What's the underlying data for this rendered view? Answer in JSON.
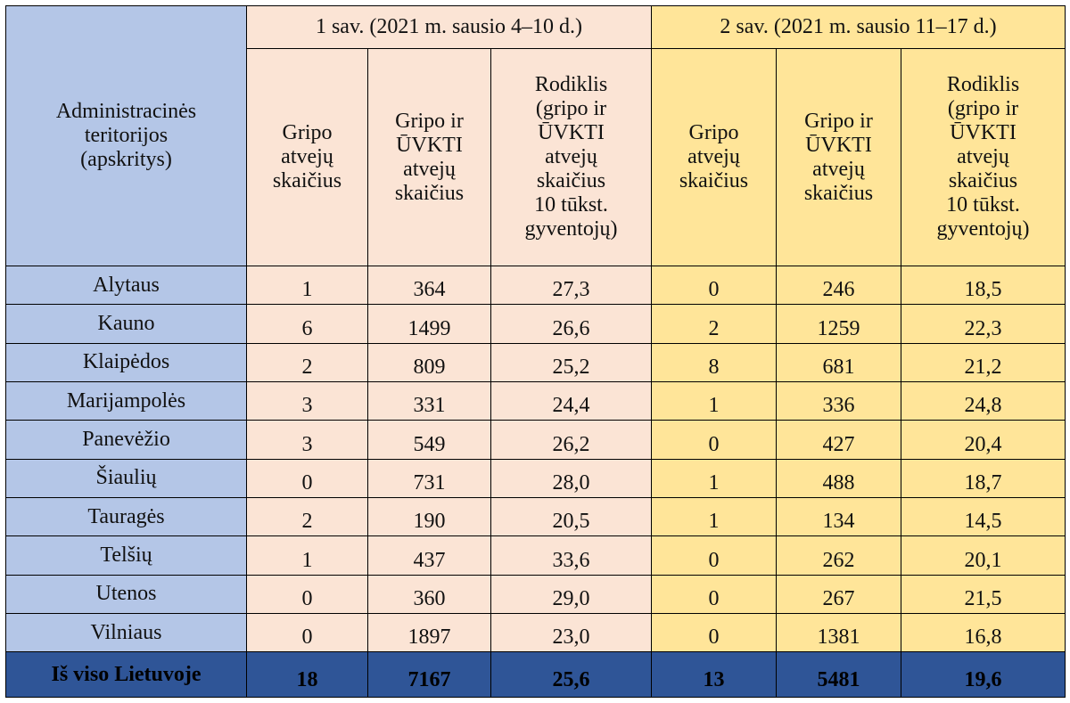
{
  "header": {
    "region_label": "Administracinės\nteritorijos\n(apskritys)",
    "week1": "1 sav. (2021 m. sausio 4–10 d.)",
    "week2": "2 sav. (2021 m. sausio 11–17 d.)",
    "col_flu": "Gripo\natvejų\nskaičius",
    "col_flu_uvkti": "Gripo ir\nŪVKTI\natvejų\nskaičius",
    "col_rate": "Rodiklis\n(gripo ir\nŪVKTI\natvejų\nskaičius\n10 tūkst.\ngyventojų)"
  },
  "rows": [
    {
      "name": "Alytaus",
      "w1": [
        "1",
        "364",
        "27,3"
      ],
      "w2": [
        "0",
        "246",
        "18,5"
      ]
    },
    {
      "name": "Kauno",
      "w1": [
        "6",
        "1499",
        "26,6"
      ],
      "w2": [
        "2",
        "1259",
        "22,3"
      ]
    },
    {
      "name": "Klaipėdos",
      "w1": [
        "2",
        "809",
        "25,2"
      ],
      "w2": [
        "8",
        "681",
        "21,2"
      ]
    },
    {
      "name": "Marijampolės",
      "w1": [
        "3",
        "331",
        "24,4"
      ],
      "w2": [
        "1",
        "336",
        "24,8"
      ]
    },
    {
      "name": "Panevėžio",
      "w1": [
        "3",
        "549",
        "26,2"
      ],
      "w2": [
        "0",
        "427",
        "20,4"
      ]
    },
    {
      "name": "Šiaulių",
      "w1": [
        "0",
        "731",
        "28,0"
      ],
      "w2": [
        "1",
        "488",
        "18,7"
      ]
    },
    {
      "name": "Tauragės",
      "w1": [
        "2",
        "190",
        "20,5"
      ],
      "w2": [
        "1",
        "134",
        "14,5"
      ]
    },
    {
      "name": "Telšių",
      "w1": [
        "1",
        "437",
        "33,6"
      ],
      "w2": [
        "0",
        "262",
        "20,1"
      ]
    },
    {
      "name": "Utenos",
      "w1": [
        "0",
        "360",
        "29,0"
      ],
      "w2": [
        "0",
        "267",
        "21,5"
      ]
    },
    {
      "name": "Vilniaus",
      "w1": [
        "0",
        "1897",
        "23,0"
      ],
      "w2": [
        "0",
        "1381",
        "16,8"
      ]
    }
  ],
  "total": {
    "name": "Iš viso Lietuvoje",
    "w1": [
      "18",
      "7167",
      "25,6"
    ],
    "w2": [
      "13",
      "5481",
      "19,6"
    ]
  },
  "colors": {
    "region_column": "#b4c6e7",
    "week1": "#fbe4d5",
    "week2": "#ffe599",
    "total_row": "#2f5597"
  }
}
